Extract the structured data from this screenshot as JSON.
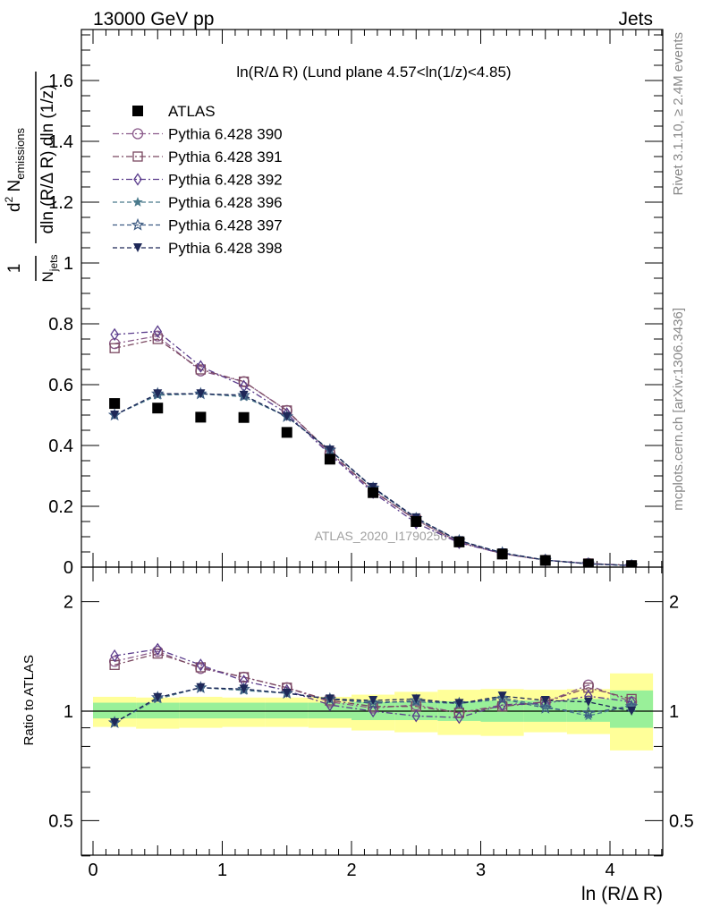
{
  "header": {
    "left": "13000 GeV pp",
    "right": "Jets",
    "side_top": "Rivet 3.1.10, ≥ 2.4M events",
    "side_bottom": "mcplots.cern.ch [arXiv:1306.3436]",
    "watermark": "ATLAS_2020_I1790256"
  },
  "chart_data": {
    "type": "scatter",
    "title": "ln(R/Δ R) (Lund plane 4.57<ln(1/z)<4.85)",
    "xlabel": "ln (R/Δ R)",
    "ylabel_main": "1/N_jets d²N_emissions / dln(R/ΔR) dln(1/z)",
    "ylabel_ratio": "Ratio to ATLAS",
    "xlim": [
      -0.1,
      4.42
    ],
    "ylim_main": [
      0,
      1.75
    ],
    "ylim_ratio": [
      0.4,
      2.3
    ],
    "ratio_log_scale": true,
    "x_ticks": [
      "0",
      "1",
      "2",
      "3",
      "4"
    ],
    "y_ticks_main": [
      "0",
      "0.2",
      "0.4",
      "0.6",
      "0.8",
      "1",
      "1.2",
      "1.4",
      "1.6"
    ],
    "y_ticks_ratio": [
      "0.5",
      "1",
      "2"
    ],
    "legend_position": "top-left",
    "x": [
      0.167,
      0.5,
      0.833,
      1.167,
      1.5,
      1.833,
      2.167,
      2.5,
      2.833,
      3.167,
      3.5,
      3.833,
      4.167
    ],
    "series": [
      {
        "name": "ATLAS",
        "marker": "square-filled",
        "line": "none",
        "color": "#000000",
        "values": [
          0.538,
          0.523,
          0.493,
          0.492,
          0.443,
          0.355,
          0.245,
          0.15,
          0.083,
          0.043,
          0.022,
          0.01,
          0.005
        ]
      },
      {
        "name": "Pythia 6.428 390",
        "marker": "circle-open",
        "line": "dashdot",
        "color": "#8a5a8a",
        "values": [
          0.735,
          0.76,
          0.645,
          0.61,
          0.515,
          0.375,
          0.25,
          0.155,
          0.082,
          0.044,
          0.023,
          0.012,
          0.005
        ]
      },
      {
        "name": "Pythia 6.428 391",
        "marker": "square-open",
        "line": "dashdot",
        "color": "#7a4860",
        "values": [
          0.72,
          0.75,
          0.65,
          0.61,
          0.515,
          0.378,
          0.252,
          0.155,
          0.082,
          0.044,
          0.023,
          0.012,
          0.006
        ]
      },
      {
        "name": "Pythia 6.428 392",
        "marker": "diamond-open",
        "line": "dashdot",
        "color": "#5a3c8c",
        "values": [
          0.765,
          0.775,
          0.66,
          0.595,
          0.505,
          0.37,
          0.245,
          0.145,
          0.08,
          0.045,
          0.023,
          0.011,
          0.005
        ]
      },
      {
        "name": "Pythia 6.428 396",
        "marker": "star-filled",
        "line": "dashed",
        "color": "#4a7a8c",
        "values": [
          0.5,
          0.565,
          0.57,
          0.56,
          0.495,
          0.385,
          0.26,
          0.16,
          0.087,
          0.047,
          0.023,
          0.011,
          0.005
        ]
      },
      {
        "name": "Pythia 6.428 397",
        "marker": "star-open",
        "line": "dashed",
        "color": "#3c5a82",
        "values": [
          0.5,
          0.57,
          0.57,
          0.565,
          0.495,
          0.385,
          0.26,
          0.16,
          0.087,
          0.047,
          0.023,
          0.011,
          0.005
        ]
      },
      {
        "name": "Pythia 6.428 398",
        "marker": "triangle-down-filled",
        "line": "dashed",
        "color": "#1e2858",
        "values": [
          0.5,
          0.57,
          0.57,
          0.565,
          0.495,
          0.385,
          0.262,
          0.162,
          0.087,
          0.047,
          0.023,
          0.011,
          0.005
        ]
      }
    ],
    "ratio_values": {
      "Pythia 6.428 390": [
        1.37,
        1.46,
        1.31,
        1.24,
        1.16,
        1.06,
        1.02,
        1.04,
        0.99,
        1.04,
        1.06,
        1.18,
        1.06
      ],
      "Pythia 6.428 391": [
        1.34,
        1.44,
        1.32,
        1.24,
        1.16,
        1.07,
        1.03,
        1.03,
        0.99,
        1.03,
        1.06,
        1.16,
        1.08
      ],
      "Pythia 6.428 392": [
        1.42,
        1.48,
        1.34,
        1.21,
        1.14,
        1.04,
        1.0,
        0.97,
        0.96,
        1.04,
        1.05,
        1.1,
        1.06
      ],
      "Pythia 6.428 396": [
        0.93,
        1.08,
        1.16,
        1.14,
        1.12,
        1.08,
        1.06,
        1.06,
        1.05,
        1.09,
        1.03,
        0.97,
        1.04
      ],
      "Pythia 6.428 397": [
        0.93,
        1.09,
        1.16,
        1.15,
        1.12,
        1.08,
        1.05,
        1.07,
        1.05,
        1.08,
        1.02,
        0.99,
        1.03
      ],
      "Pythia 6.428 398": [
        0.93,
        1.09,
        1.16,
        1.15,
        1.12,
        1.08,
        1.07,
        1.08,
        1.05,
        1.1,
        1.07,
        1.06,
        1.0
      ]
    },
    "ratio_bands": {
      "bin_edges": [
        0,
        0.333,
        0.667,
        1.0,
        1.333,
        1.667,
        2.0,
        2.333,
        2.667,
        3.0,
        3.333,
        3.667,
        4.0,
        4.333
      ],
      "green_low": [
        0.955,
        0.955,
        0.955,
        0.955,
        0.955,
        0.955,
        0.945,
        0.945,
        0.94,
        0.935,
        0.935,
        0.935,
        0.9
      ],
      "green_high": [
        1.055,
        1.055,
        1.055,
        1.055,
        1.055,
        1.055,
        1.06,
        1.06,
        1.065,
        1.07,
        1.07,
        1.08,
        1.14
      ],
      "yellow_low": [
        0.905,
        0.895,
        0.9,
        0.905,
        0.905,
        0.9,
        0.885,
        0.875,
        0.86,
        0.855,
        0.875,
        0.865,
        0.78
      ],
      "yellow_high": [
        1.095,
        1.09,
        1.095,
        1.09,
        1.09,
        1.095,
        1.11,
        1.13,
        1.145,
        1.15,
        1.145,
        1.15,
        1.27
      ]
    }
  }
}
